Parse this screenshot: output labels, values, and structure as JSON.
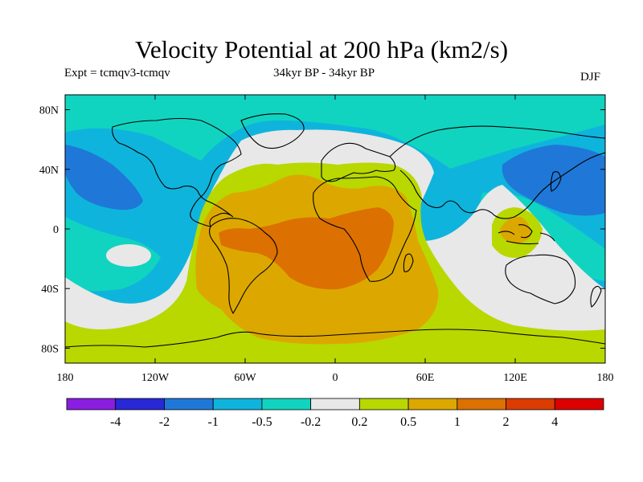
{
  "header": {
    "title": "Velocity Potential at 200 hPa (km2/s)",
    "experiment": "Expt = tcmqv3-tcmqv",
    "period": "34kyr BP - 34kyr BP",
    "season": "DJF"
  },
  "map": {
    "lat_ticks": [
      {
        "value": 80,
        "label": "80N"
      },
      {
        "value": 40,
        "label": "40N"
      },
      {
        "value": 0,
        "label": "0"
      },
      {
        "value": -40,
        "label": "40S"
      },
      {
        "value": -80,
        "label": "80S"
      }
    ],
    "lon_ticks": [
      {
        "value": -180,
        "label": "180"
      },
      {
        "value": -120,
        "label": "120W"
      },
      {
        "value": -60,
        "label": "60W"
      },
      {
        "value": 0,
        "label": "0"
      },
      {
        "value": 60,
        "label": "60E"
      },
      {
        "value": 120,
        "label": "120E"
      },
      {
        "value": 180,
        "label": "180"
      }
    ],
    "extent": {
      "lon": [
        -180,
        180
      ],
      "lat": [
        -90,
        90
      ]
    }
  },
  "colorbar": {
    "colors": [
      "#8a1ee0",
      "#2828d6",
      "#1f78d8",
      "#0fb4dc",
      "#10d4c0",
      "#e8e8e8",
      "#b8d800",
      "#dca800",
      "#dc7000",
      "#dc3c00",
      "#dc0000"
    ],
    "labels": [
      "-4",
      "-2",
      "-1",
      "-0.5",
      "-0.2",
      "0.2",
      "0.5",
      "1",
      "2",
      "4"
    ]
  }
}
